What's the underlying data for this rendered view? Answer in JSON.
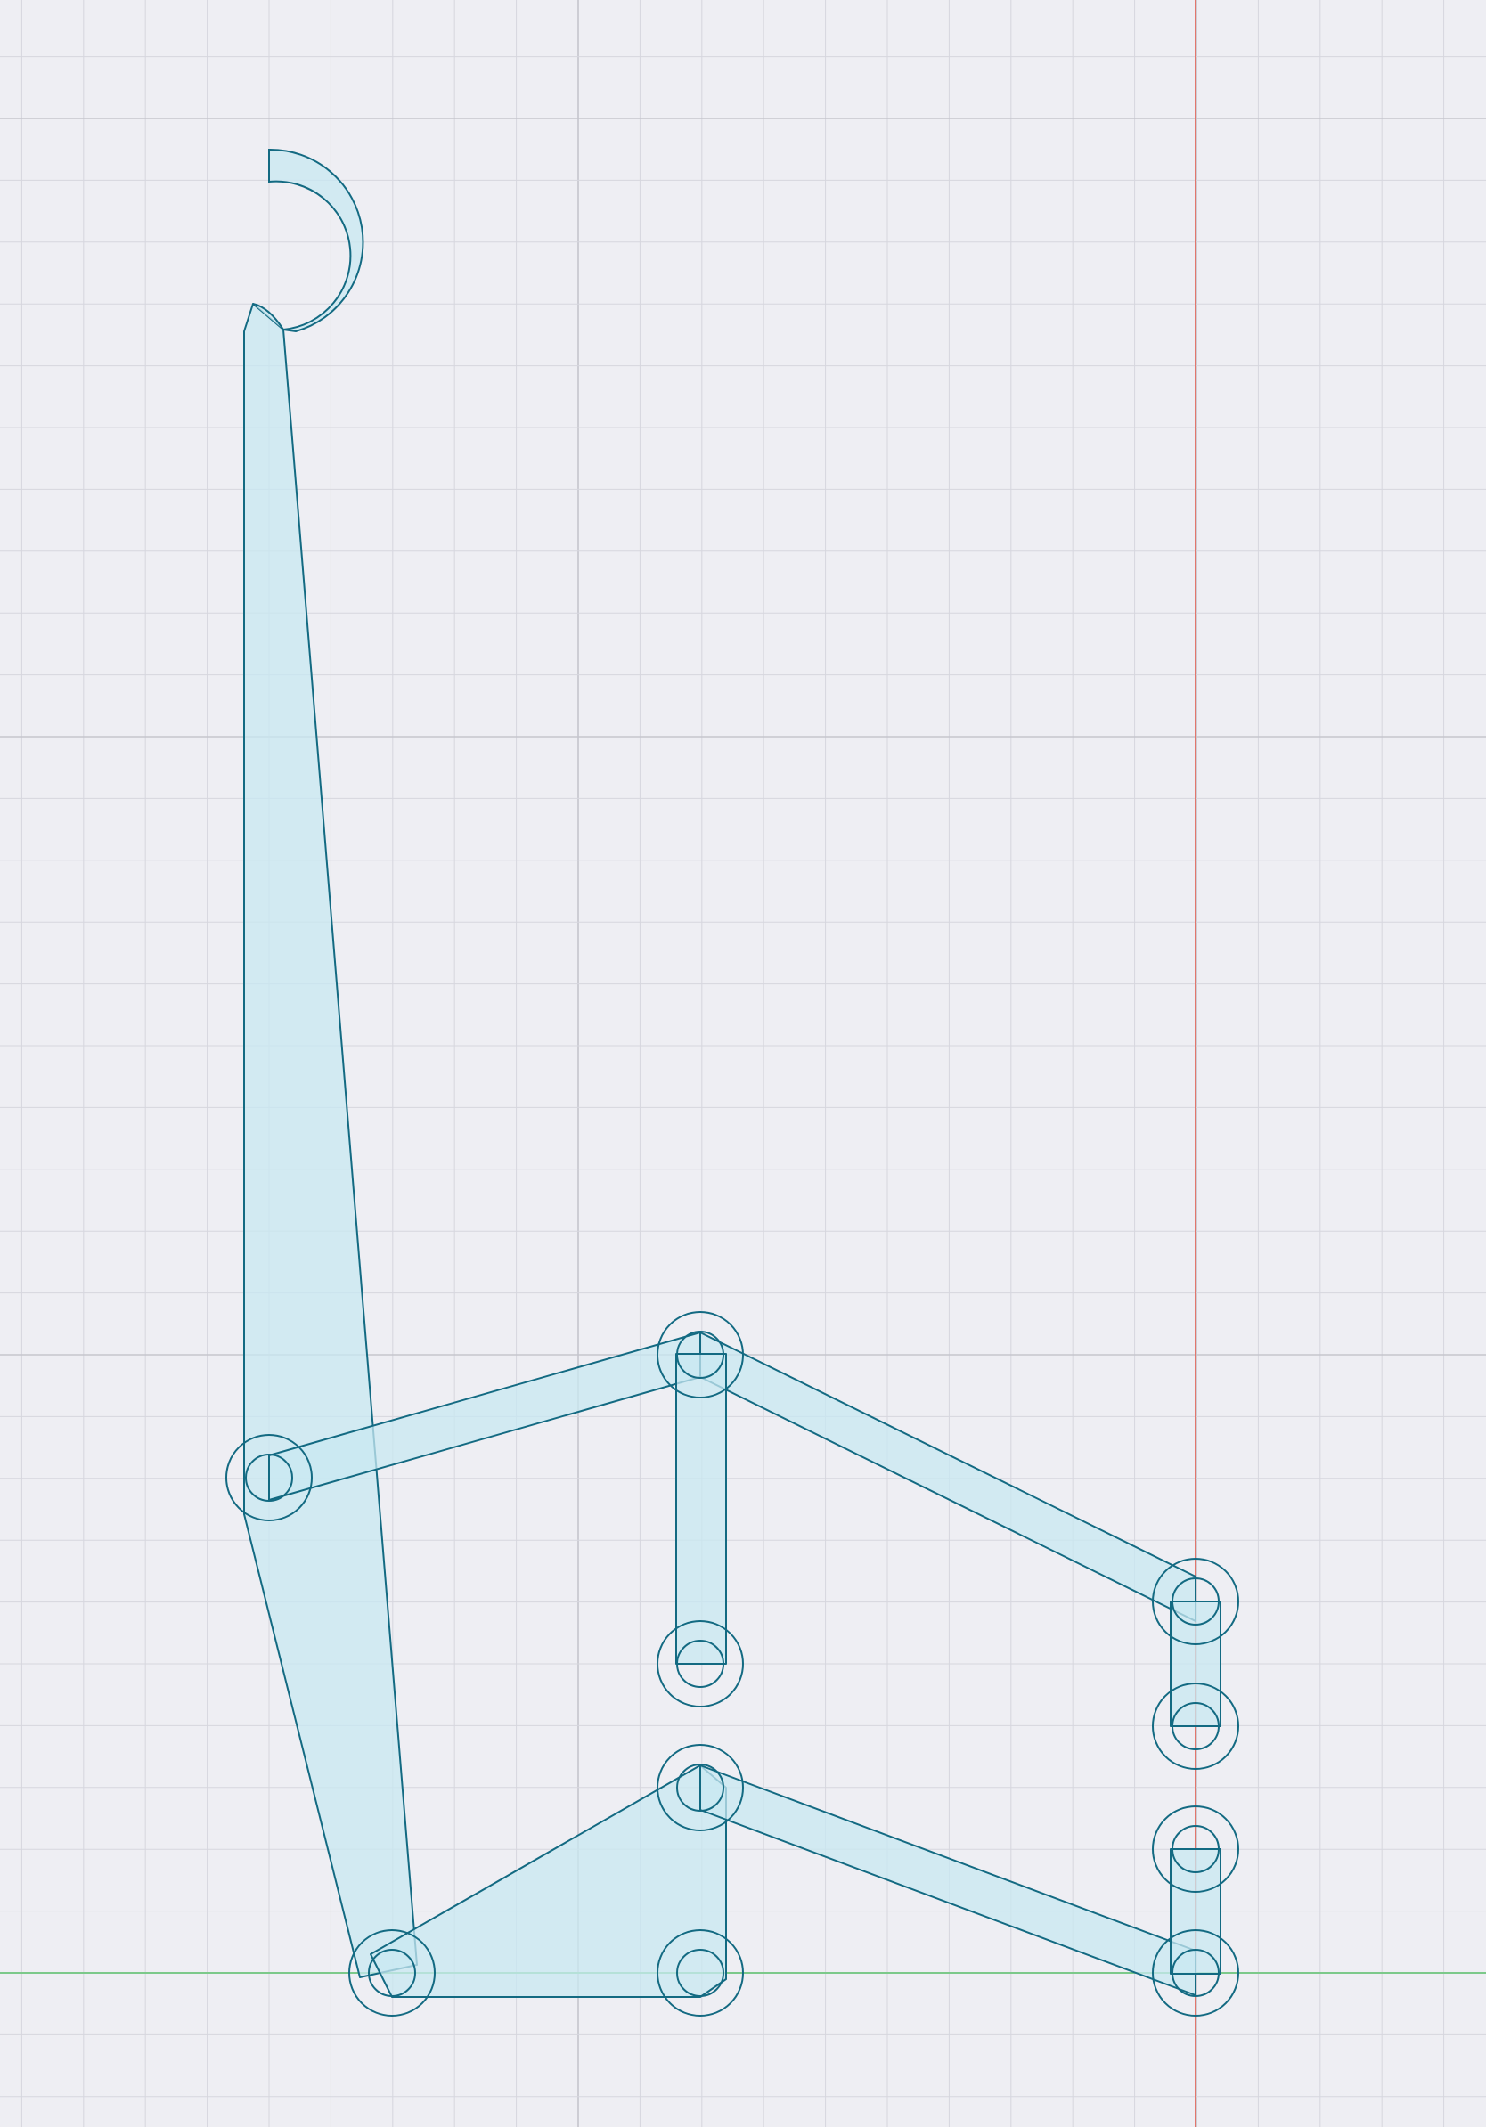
{
  "sketch": {
    "axis_colors": {
      "y_axis": "#e2766c",
      "x_axis": "#7cc98a"
    },
    "part_fill": "#c8e8f2",
    "part_stroke": "#136a82",
    "background": "#eeeef3"
  }
}
